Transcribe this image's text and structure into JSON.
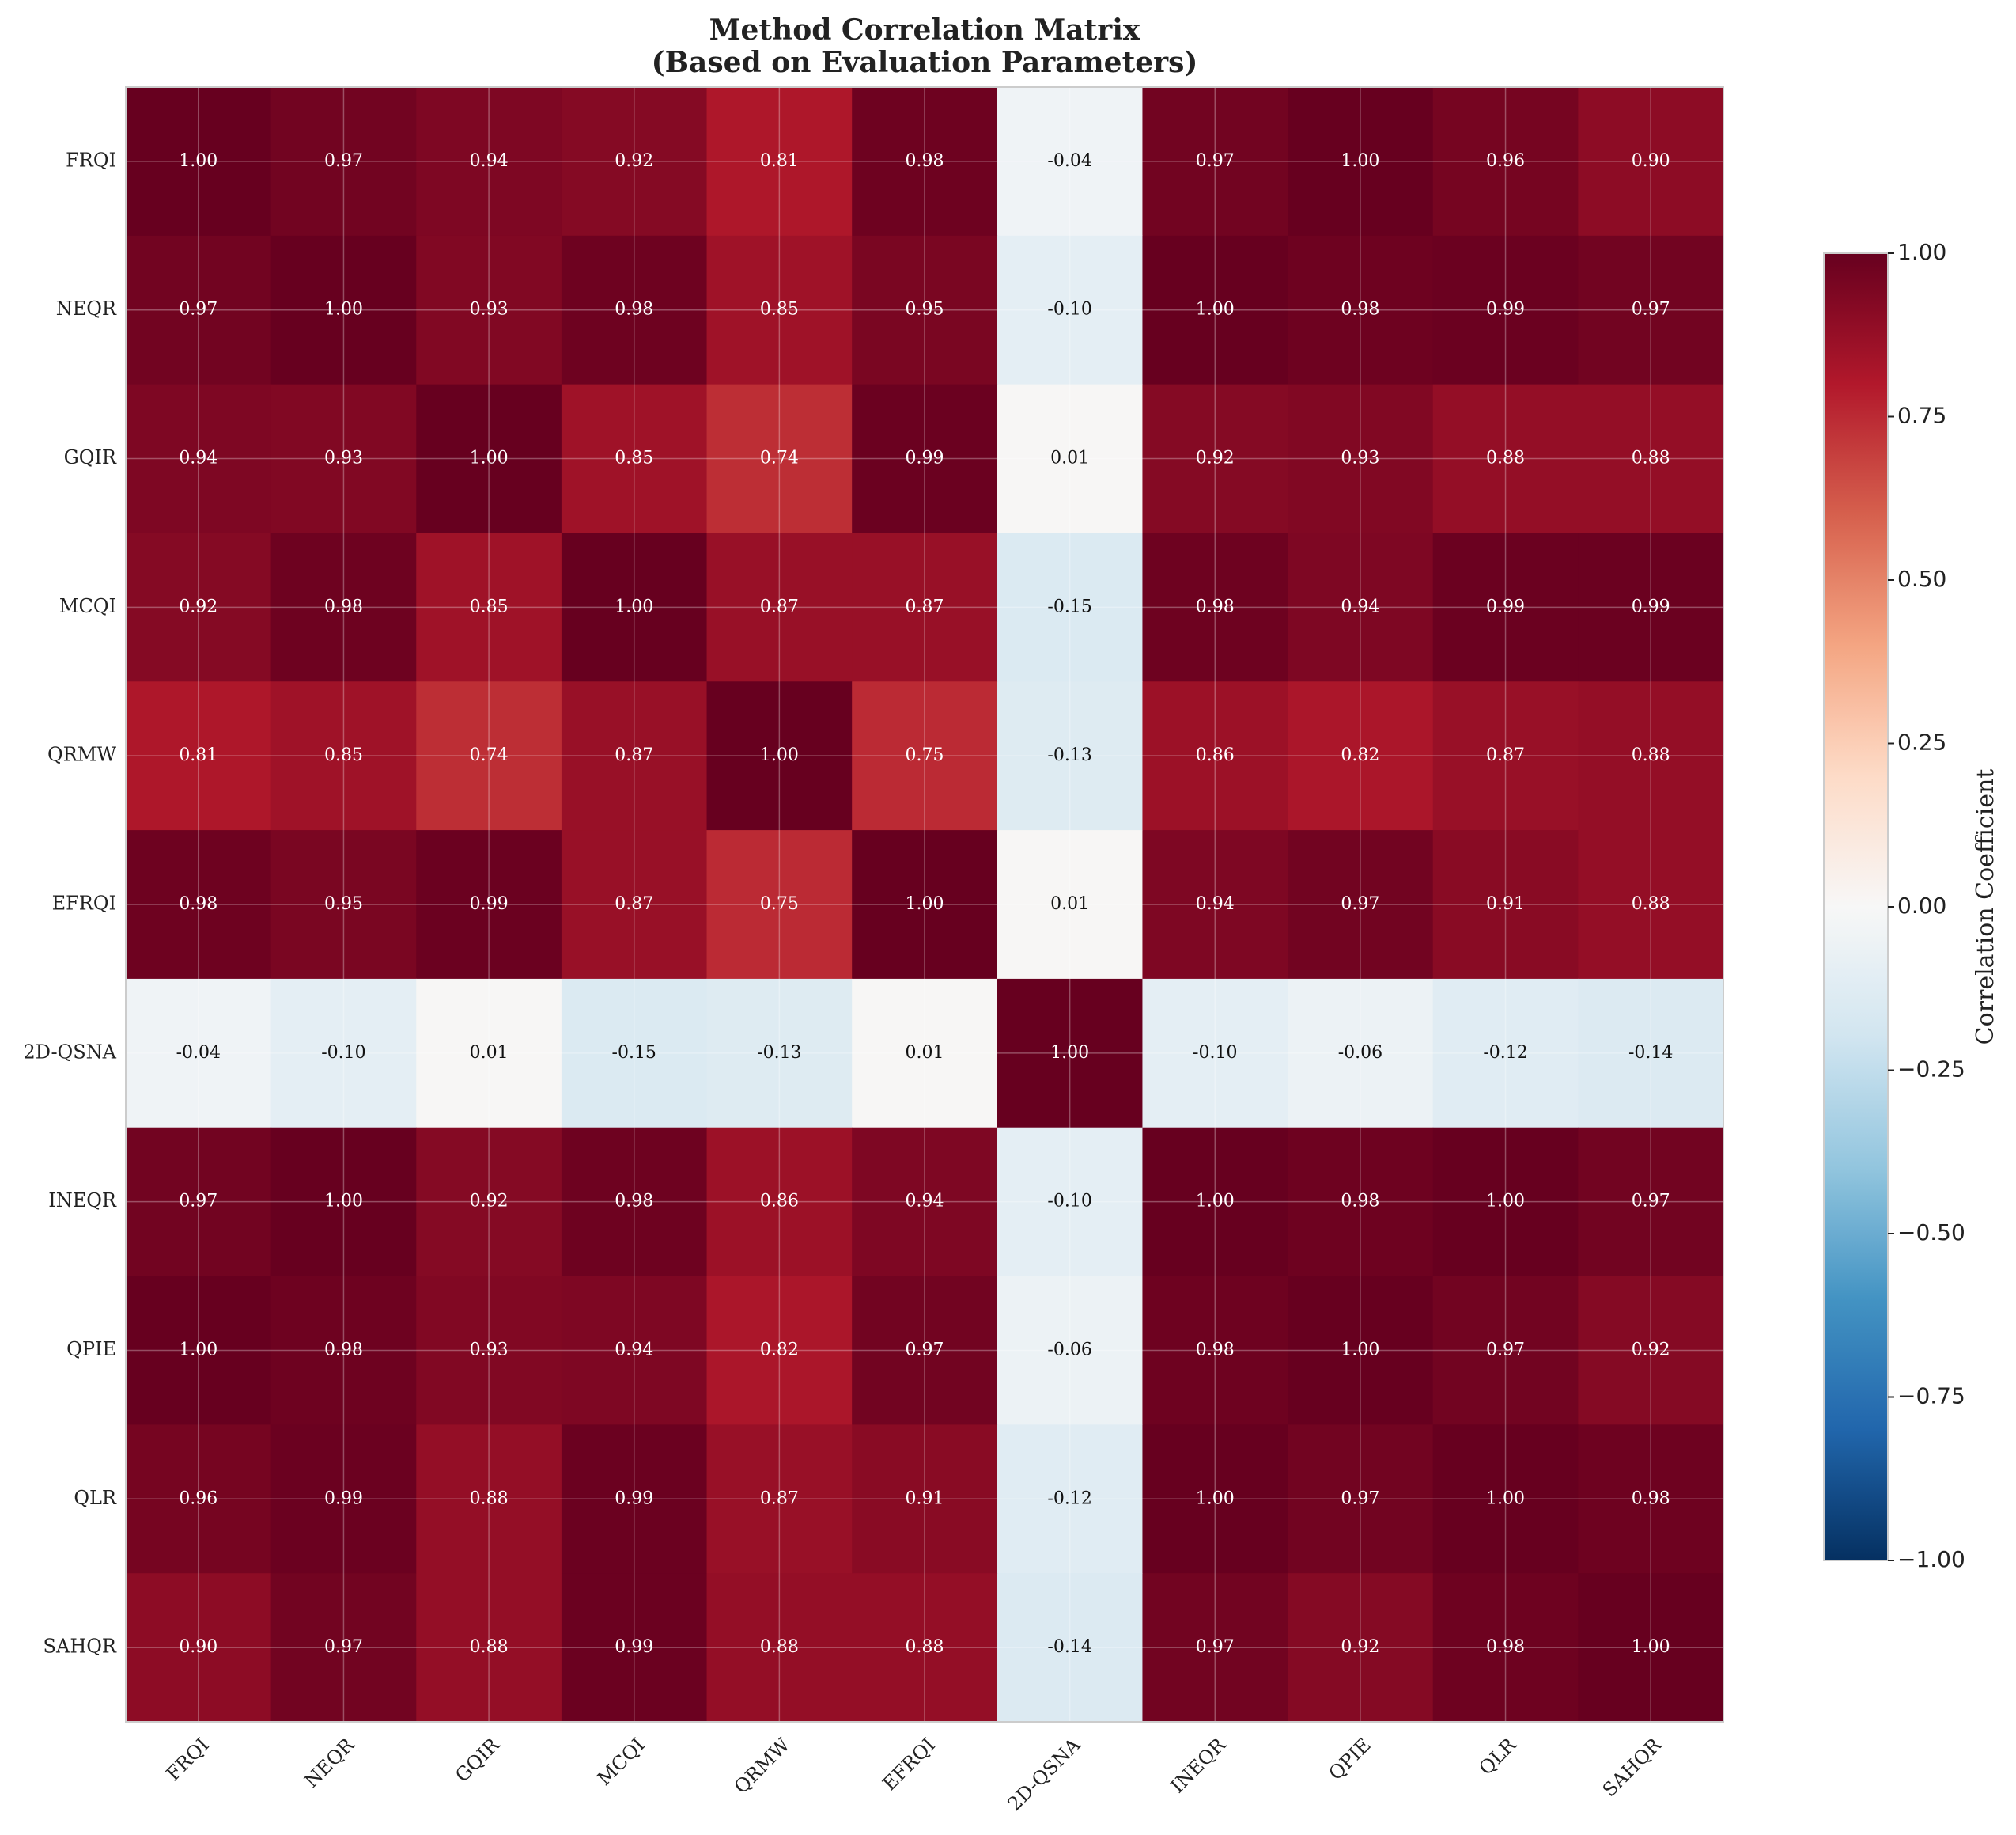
{
  "chart_data": {
    "type": "heatmap",
    "title": "Method Correlation Matrix",
    "subtitle": "(Based on Evaluation Parameters)",
    "x": [
      "FRQI",
      "NEQR",
      "GQIR",
      "MCQI",
      "QRMW",
      "EFRQI",
      "2D-QSNA",
      "INEQR",
      "QPIE",
      "QLR",
      "SAHQR"
    ],
    "y": [
      "FRQI",
      "NEQR",
      "GQIR",
      "MCQI",
      "QRMW",
      "EFRQI",
      "2D-QSNA",
      "INEQR",
      "QPIE",
      "QLR",
      "SAHQR"
    ],
    "values": [
      [
        1,
        0.97,
        0.94,
        0.92,
        0.81,
        0.98,
        -0.04,
        0.97,
        1,
        0.96,
        0.9
      ],
      [
        0.97,
        1,
        0.93,
        0.98,
        0.85,
        0.95,
        -0.1,
        1,
        0.98,
        0.99,
        0.97
      ],
      [
        0.94,
        0.93,
        1,
        0.85,
        0.74,
        0.99,
        0.01,
        0.92,
        0.93,
        0.88,
        0.88
      ],
      [
        0.92,
        0.98,
        0.85,
        1,
        0.87,
        0.87,
        -0.15,
        0.98,
        0.94,
        0.99,
        0.99
      ],
      [
        0.81,
        0.85,
        0.74,
        0.87,
        1,
        0.75,
        -0.13,
        0.86,
        0.82,
        0.87,
        0.88
      ],
      [
        0.98,
        0.95,
        0.99,
        0.87,
        0.75,
        1,
        0.01,
        0.94,
        0.97,
        0.91,
        0.88
      ],
      [
        -0.04,
        -0.1,
        0.01,
        -0.15,
        -0.13,
        0.01,
        1,
        -0.1,
        -0.06,
        -0.12,
        -0.14
      ],
      [
        0.97,
        1,
        0.92,
        0.98,
        0.86,
        0.94,
        -0.1,
        1,
        0.98,
        1,
        0.97
      ],
      [
        1,
        0.98,
        0.93,
        0.94,
        0.82,
        0.97,
        -0.06,
        0.98,
        1,
        0.97,
        0.92
      ],
      [
        0.96,
        0.99,
        0.88,
        0.99,
        0.87,
        0.91,
        -0.12,
        1,
        0.97,
        1,
        0.98
      ],
      [
        0.9,
        0.97,
        0.88,
        0.99,
        0.88,
        0.88,
        -0.14,
        0.97,
        0.92,
        0.98,
        1
      ]
    ],
    "value_labels": [
      [
        "1.00",
        "0.97",
        "0.94",
        "0.92",
        "0.81",
        "0.98",
        "-0.04",
        "0.97",
        "1.00",
        "0.96",
        "0.90"
      ],
      [
        "0.97",
        "1.00",
        "0.93",
        "0.98",
        "0.85",
        "0.95",
        "-0.10",
        "1.00",
        "0.98",
        "0.99",
        "0.97"
      ],
      [
        "0.94",
        "0.93",
        "1.00",
        "0.85",
        "0.74",
        "0.99",
        "0.01",
        "0.92",
        "0.93",
        "0.88",
        "0.88"
      ],
      [
        "0.92",
        "0.98",
        "0.85",
        "1.00",
        "0.87",
        "0.87",
        "-0.15",
        "0.98",
        "0.94",
        "0.99",
        "0.99"
      ],
      [
        "0.81",
        "0.85",
        "0.74",
        "0.87",
        "1.00",
        "0.75",
        "-0.13",
        "0.86",
        "0.82",
        "0.87",
        "0.88"
      ],
      [
        "0.98",
        "0.95",
        "0.99",
        "0.87",
        "0.75",
        "1.00",
        "0.01",
        "0.94",
        "0.97",
        "0.91",
        "0.88"
      ],
      [
        "-0.04",
        "-0.10",
        "0.01",
        "-0.15",
        "-0.13",
        "0.01",
        "1.00",
        "-0.10",
        "-0.06",
        "-0.12",
        "-0.14"
      ],
      [
        "0.97",
        "1.00",
        "0.92",
        "0.98",
        "0.86",
        "0.94",
        "-0.10",
        "1.00",
        "0.98",
        "1.00",
        "0.97"
      ],
      [
        "1.00",
        "0.98",
        "0.93",
        "0.94",
        "0.82",
        "0.97",
        "-0.06",
        "0.98",
        "1.00",
        "0.97",
        "0.92"
      ],
      [
        "0.96",
        "0.99",
        "0.88",
        "0.99",
        "0.87",
        "0.91",
        "-0.12",
        "1.00",
        "0.97",
        "1.00",
        "0.98"
      ],
      [
        "0.90",
        "0.97",
        "0.88",
        "0.99",
        "0.88",
        "0.88",
        "-0.14",
        "0.97",
        "0.92",
        "0.98",
        "1.00"
      ]
    ],
    "colormap": "RdBu_r",
    "clim": [
      -1,
      1
    ],
    "cticks": [
      {
        "value": -1,
        "label": "−1.00"
      },
      {
        "value": -0.75,
        "label": "−0.75"
      },
      {
        "value": -0.5,
        "label": "−0.50"
      },
      {
        "value": -0.25,
        "label": "−0.25"
      },
      {
        "value": 0,
        "label": "0.00"
      },
      {
        "value": 0.25,
        "label": "0.25"
      },
      {
        "value": 0.5,
        "label": "0.50"
      },
      {
        "value": 0.75,
        "label": "0.75"
      },
      {
        "value": 1,
        "label": "1.00"
      }
    ],
    "colorbar_label": "Correlation Coefficient",
    "grid": true
  }
}
